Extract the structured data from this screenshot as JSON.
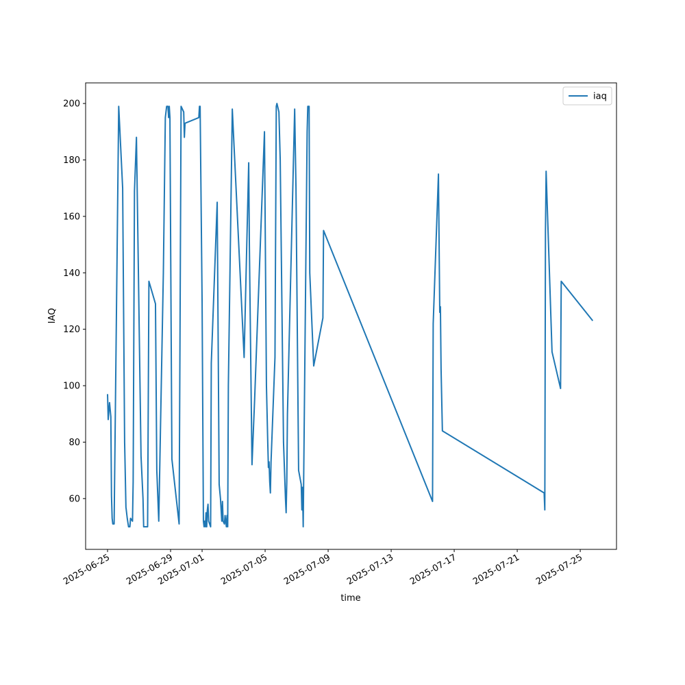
{
  "chart_data": {
    "type": "line",
    "xlabel": "time",
    "ylabel": "IAQ",
    "x": [
      "2025-06-25 00:00",
      "2025-06-25 01:00",
      "2025-06-25 03:00",
      "2025-06-25 05:00",
      "2025-06-25 06:00",
      "2025-06-25 07:00",
      "2025-06-25 08:00",
      "2025-06-25 10:00",
      "2025-06-25 17:00",
      "2025-06-25 23:00",
      "2025-06-26 02:00",
      "2025-06-26 04:00",
      "2025-06-26 06:00",
      "2025-06-26 08:00",
      "2025-06-26 10:00",
      "2025-06-26 11:00",
      "2025-06-26 14:00",
      "2025-06-26 15:00",
      "2025-06-26 17:00",
      "2025-06-26 20:00",
      "2025-06-26 23:00",
      "2025-06-27 03:00",
      "2025-06-27 06:00",
      "2025-06-27 07:00",
      "2025-06-27 13:00",
      "2025-06-27 15:00",
      "2025-06-28 01:00",
      "2025-06-28 03:00",
      "2025-06-28 06:00",
      "2025-06-28 13:00",
      "2025-06-28 16:00",
      "2025-06-28 18:00",
      "2025-06-28 20:00",
      "2025-06-28 21:00",
      "2025-06-28 22:00",
      "2025-06-28 23:00",
      "2025-06-29 02:00",
      "2025-06-29 13:00",
      "2025-06-29 16:00",
      "2025-06-29 20:00",
      "2025-06-29 21:00",
      "2025-06-29 22:00",
      "2025-06-30 19:00",
      "2025-06-30 20:00",
      "2025-06-30 21:00",
      "2025-07-01 00:00",
      "2025-07-01 02:00",
      "2025-07-01 03:00",
      "2025-07-01 04:00",
      "2025-07-01 05:00",
      "2025-07-01 06:00",
      "2025-07-01 07:00",
      "2025-07-01 08:00",
      "2025-07-01 09:00",
      "2025-07-01 10:00",
      "2025-07-01 13:00",
      "2025-07-01 14:00",
      "2025-07-01 23:00",
      "2025-07-02 02:00",
      "2025-07-02 04:00",
      "2025-07-02 06:00",
      "2025-07-02 07:00",
      "2025-07-02 08:00",
      "2025-07-02 10:00",
      "2025-07-02 11:00",
      "2025-07-02 13:00",
      "2025-07-02 14:00",
      "2025-07-02 15:00",
      "2025-07-02 16:00",
      "2025-07-02 22:00",
      "2025-07-03 16:00",
      "2025-07-03 23:00",
      "2025-07-04 00:00",
      "2025-07-04 04:00",
      "2025-07-04 08:00",
      "2025-07-04 23:00",
      "2025-07-05 02:00",
      "2025-07-05 04:00",
      "2025-07-05 05:00",
      "2025-07-05 06:00",
      "2025-07-05 07:00",
      "2025-07-05 08:00",
      "2025-07-05 09:00",
      "2025-07-05 15:00",
      "2025-07-05 17:00",
      "2025-07-05 18:00",
      "2025-07-05 21:00",
      "2025-07-05 23:00",
      "2025-07-06 04:00",
      "2025-07-06 07:00",
      "2025-07-06 08:00",
      "2025-07-06 09:00",
      "2025-07-06 10:00",
      "2025-07-06 21:00",
      "2025-07-06 23:00",
      "2025-07-07 03:00",
      "2025-07-07 07:00",
      "2025-07-07 08:00",
      "2025-07-07 09:00",
      "2025-07-07 10:00",
      "2025-07-07 16:00",
      "2025-07-07 17:00",
      "2025-07-07 19:00",
      "2025-07-07 20:00",
      "2025-07-08 02:00",
      "2025-07-08 16:00",
      "2025-07-08 17:00",
      "2025-07-15 15:00",
      "2025-07-15 16:00",
      "2025-07-16 00:00",
      "2025-07-16 02:00",
      "2025-07-16 03:00",
      "2025-07-16 04:00",
      "2025-07-16 06:00",
      "2025-07-22 17:00",
      "2025-07-22 18:00",
      "2025-07-22 19:00",
      "2025-07-22 20:00",
      "2025-07-23 05:00",
      "2025-07-23 18:00",
      "2025-07-23 19:00",
      "2025-07-25 19:00"
    ],
    "series": [
      {
        "name": "iaq",
        "color": "#1f77b4",
        "values": [
          97,
          88,
          94,
          89,
          61,
          53,
          51,
          51,
          199,
          170,
          80,
          57,
          53,
          50,
          50,
          53,
          52,
          66,
          169,
          188,
          140,
          75,
          60,
          50,
          50,
          137,
          129,
          70,
          52,
          140,
          195,
          199,
          199,
          195,
          199,
          195,
          74,
          51,
          199,
          197,
          188,
          193,
          195,
          199,
          199,
          130,
          52,
          50,
          52,
          50,
          55,
          50,
          56,
          58,
          52,
          50,
          108,
          165,
          65,
          60,
          52,
          59,
          52,
          51,
          54,
          50,
          54,
          50,
          100,
          198,
          110,
          179,
          150,
          72,
          95,
          190,
          100,
          80,
          71,
          73,
          66,
          62,
          73,
          110,
          199,
          200,
          197,
          180,
          80,
          60,
          55,
          66,
          90,
          198,
          170,
          70,
          65,
          56,
          64,
          50,
          190,
          199,
          199,
          140,
          107,
          124,
          155,
          59,
          122,
          175,
          126,
          128,
          106,
          84,
          62,
          56,
          155,
          176,
          112,
          99,
          137,
          123
        ]
      }
    ],
    "xlim": [
      "2025-06-23 14:36",
      "2025-07-27 07:12"
    ],
    "xticks": [
      "2025-06-25",
      "2025-06-29",
      "2025-07-01",
      "2025-07-05",
      "2025-07-09",
      "2025-07-13",
      "2025-07-17",
      "2025-07-21",
      "2025-07-25"
    ],
    "ylim": [
      42,
      207.3
    ],
    "yticks": [
      60,
      80,
      100,
      120,
      140,
      160,
      180,
      200
    ],
    "legend": "upper right"
  }
}
